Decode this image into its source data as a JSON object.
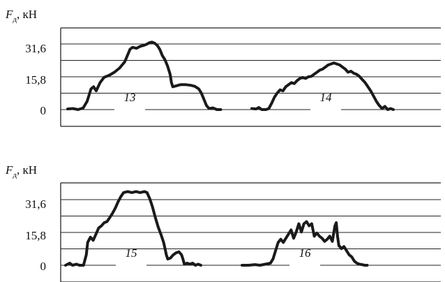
{
  "chart_data": [
    {
      "type": "line",
      "ylabel": {
        "main": "F",
        "sub": "д",
        "unit": ", кН"
      },
      "yticks": [
        "31,6",
        "15,8",
        "0"
      ],
      "ytick_values": [
        31.6,
        15.8,
        0
      ],
      "ylim": [
        -10.5,
        42.2
      ],
      "grid": true,
      "series": [
        {
          "name": "13",
          "points": [
            [
              0,
              0.3
            ],
            [
              4,
              0.5
            ],
            [
              8,
              0
            ],
            [
              12,
              0.8
            ],
            [
              15,
              4
            ],
            [
              18,
              10
            ],
            [
              20,
              11
            ],
            [
              22,
              9
            ],
            [
              25,
              13
            ],
            [
              28,
              15.5
            ],
            [
              32,
              16.5
            ],
            [
              36,
              18
            ],
            [
              40,
              20
            ],
            [
              44,
              23
            ],
            [
              46,
              26
            ],
            [
              48,
              29
            ],
            [
              50,
              30
            ],
            [
              53,
              29.5
            ],
            [
              56,
              30.5
            ],
            [
              59,
              31
            ],
            [
              61,
              31.5
            ],
            [
              63,
              32.2
            ],
            [
              65,
              32.5
            ],
            [
              67,
              32
            ],
            [
              69,
              31
            ],
            [
              71,
              29
            ],
            [
              73,
              26
            ],
            [
              75,
              24
            ],
            [
              77,
              21
            ],
            [
              79,
              17
            ],
            [
              80,
              13
            ],
            [
              81,
              11
            ],
            [
              84,
              11.5
            ],
            [
              87,
              12
            ],
            [
              91,
              12
            ],
            [
              95,
              11.7
            ],
            [
              98,
              11.2
            ],
            [
              101,
              10
            ],
            [
              103,
              8
            ],
            [
              105,
              5
            ],
            [
              107,
              2
            ],
            [
              109,
              0.5
            ],
            [
              112,
              0.8
            ],
            [
              115,
              0
            ],
            [
              118,
              0
            ]
          ]
        },
        {
          "name": "14",
          "points": [
            [
              0,
              0.5
            ],
            [
              3,
              0.3
            ],
            [
              5,
              1
            ],
            [
              7,
              0
            ],
            [
              10,
              0
            ],
            [
              12,
              0.5
            ],
            [
              14,
              3
            ],
            [
              16,
              6
            ],
            [
              18,
              8
            ],
            [
              20,
              9.5
            ],
            [
              22,
              9
            ],
            [
              24,
              11
            ],
            [
              26,
              12
            ],
            [
              28,
              13
            ],
            [
              30,
              12.5
            ],
            [
              32,
              14
            ],
            [
              34,
              15
            ],
            [
              36,
              15.5
            ],
            [
              38,
              15
            ],
            [
              40,
              15.8
            ],
            [
              42,
              16
            ],
            [
              44,
              17
            ],
            [
              46,
              18
            ],
            [
              48,
              19
            ],
            [
              50,
              19.5
            ],
            [
              52,
              20.5
            ],
            [
              54,
              21.5
            ],
            [
              56,
              22
            ],
            [
              58,
              22.5
            ],
            [
              60,
              22
            ],
            [
              62,
              21.5
            ],
            [
              64,
              20.5
            ],
            [
              66,
              19.5
            ],
            [
              68,
              18
            ],
            [
              70,
              18.5
            ],
            [
              72,
              17.5
            ],
            [
              74,
              17
            ],
            [
              76,
              16
            ],
            [
              78,
              14.5
            ],
            [
              80,
              13
            ],
            [
              82,
              11
            ],
            [
              84,
              9
            ],
            [
              86,
              6.5
            ],
            [
              88,
              4
            ],
            [
              90,
              2
            ],
            [
              92,
              0.5
            ],
            [
              94,
              1.5
            ],
            [
              96,
              0
            ],
            [
              98,
              0.5
            ],
            [
              100,
              0
            ]
          ]
        },
        {
          "name": "15",
          "points": [
            [
              0,
              0
            ],
            [
              3,
              1
            ],
            [
              5,
              0
            ],
            [
              8,
              0.5
            ],
            [
              10,
              0
            ],
            [
              13,
              0
            ],
            [
              15,
              5
            ],
            [
              16,
              11
            ],
            [
              18,
              13.5
            ],
            [
              20,
              12
            ],
            [
              22,
              15
            ],
            [
              24,
              18
            ],
            [
              26,
              19
            ],
            [
              28,
              20.5
            ],
            [
              30,
              21
            ],
            [
              32,
              23
            ],
            [
              34,
              25
            ],
            [
              36,
              27.5
            ],
            [
              38,
              30.5
            ],
            [
              40,
              33
            ],
            [
              42,
              35
            ],
            [
              45,
              35.5
            ],
            [
              48,
              35
            ],
            [
              51,
              35.5
            ],
            [
              54,
              35
            ],
            [
              57,
              35.5
            ],
            [
              59,
              35
            ],
            [
              61,
              32
            ],
            [
              63,
              28
            ],
            [
              65,
              23
            ],
            [
              67,
              18.5
            ],
            [
              69,
              15
            ],
            [
              71,
              11
            ],
            [
              72,
              8
            ],
            [
              73,
              5
            ],
            [
              74,
              3
            ],
            [
              76,
              3.5
            ],
            [
              78,
              5
            ],
            [
              80,
              6
            ],
            [
              82,
              6.5
            ],
            [
              84,
              5
            ],
            [
              85,
              3
            ],
            [
              86,
              0.5
            ],
            [
              88,
              1
            ],
            [
              90,
              0.5
            ],
            [
              92,
              1
            ],
            [
              94,
              0
            ],
            [
              96,
              0.5
            ],
            [
              98,
              0
            ]
          ]
        },
        {
          "name": "16",
          "points": [
            [
              0,
              0
            ],
            [
              5,
              0
            ],
            [
              10,
              0.3
            ],
            [
              14,
              0
            ],
            [
              18,
              0.5
            ],
            [
              22,
              1
            ],
            [
              24,
              3
            ],
            [
              26,
              7
            ],
            [
              28,
              11
            ],
            [
              30,
              12.5
            ],
            [
              32,
              11
            ],
            [
              34,
              13
            ],
            [
              36,
              15
            ],
            [
              38,
              17
            ],
            [
              40,
              13
            ],
            [
              42,
              16
            ],
            [
              44,
              20
            ],
            [
              46,
              16
            ],
            [
              48,
              20
            ],
            [
              50,
              21
            ],
            [
              52,
              19
            ],
            [
              54,
              20
            ],
            [
              56,
              14
            ],
            [
              58,
              15.5
            ],
            [
              60,
              14
            ],
            [
              62,
              13
            ],
            [
              64,
              11.5
            ],
            [
              66,
              12.5
            ],
            [
              68,
              14
            ],
            [
              70,
              11.5
            ],
            [
              72,
              19
            ],
            [
              73,
              20.5
            ],
            [
              74,
              14
            ],
            [
              75,
              9.5
            ],
            [
              77,
              8
            ],
            [
              79,
              9
            ],
            [
              81,
              7
            ],
            [
              83,
              5
            ],
            [
              85,
              4
            ],
            [
              87,
              2
            ],
            [
              89,
              1
            ],
            [
              91,
              0.5
            ],
            [
              93,
              0.3
            ],
            [
              95,
              0
            ],
            [
              97,
              0
            ]
          ]
        }
      ]
    },
    {
      "type": "line",
      "ylabel": {
        "main": "F",
        "sub": "д",
        "unit": ", кН"
      },
      "yticks": [
        "31,6",
        "15,8",
        "0"
      ],
      "ytick_values": [
        31.6,
        15.8,
        0
      ],
      "ylim": [
        -10.5,
        42.2
      ],
      "grid": true,
      "series": []
    }
  ]
}
